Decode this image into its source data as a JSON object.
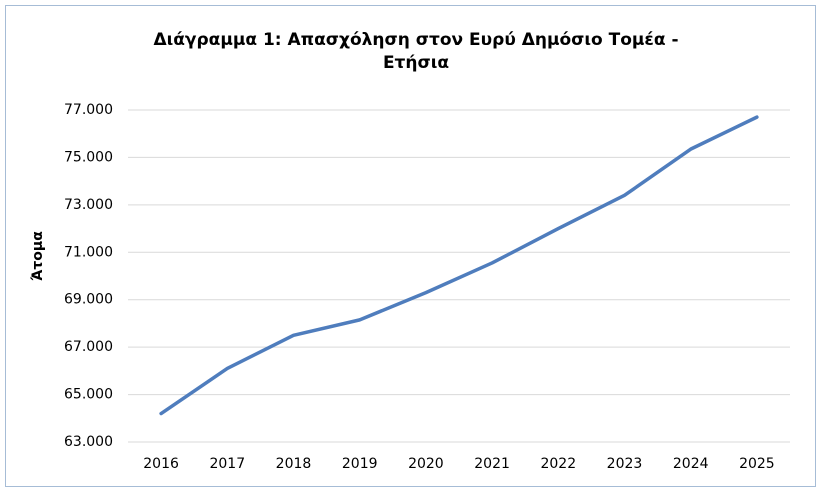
{
  "chart_data": {
    "type": "line",
    "title": "Διάγραμμα 1: Απασχόληση στον Ευρύ Δημόσιο Τομέα - Ετήσια",
    "y_label": "Άτομα",
    "categories": [
      "2016",
      "2017",
      "2018",
      "2019",
      "2020",
      "2021",
      "2022",
      "2023",
      "2024",
      "2025"
    ],
    "values": [
      64200,
      66100,
      67500,
      68150,
      69300,
      70550,
      72000,
      73400,
      75350,
      76700
    ],
    "color": "#4f7dbd",
    "ylim": [
      63000,
      77000
    ],
    "yticks": [
      {
        "value": 63000,
        "label": "63.000"
      },
      {
        "value": 65000,
        "label": "65.000"
      },
      {
        "value": 67000,
        "label": "67.000"
      },
      {
        "value": 69000,
        "label": "69.000"
      },
      {
        "value": 71000,
        "label": "71.000"
      },
      {
        "value": 73000,
        "label": "73.000"
      },
      {
        "value": 75000,
        "label": "75.000"
      },
      {
        "value": 77000,
        "label": "77.000"
      }
    ],
    "grid": true
  }
}
